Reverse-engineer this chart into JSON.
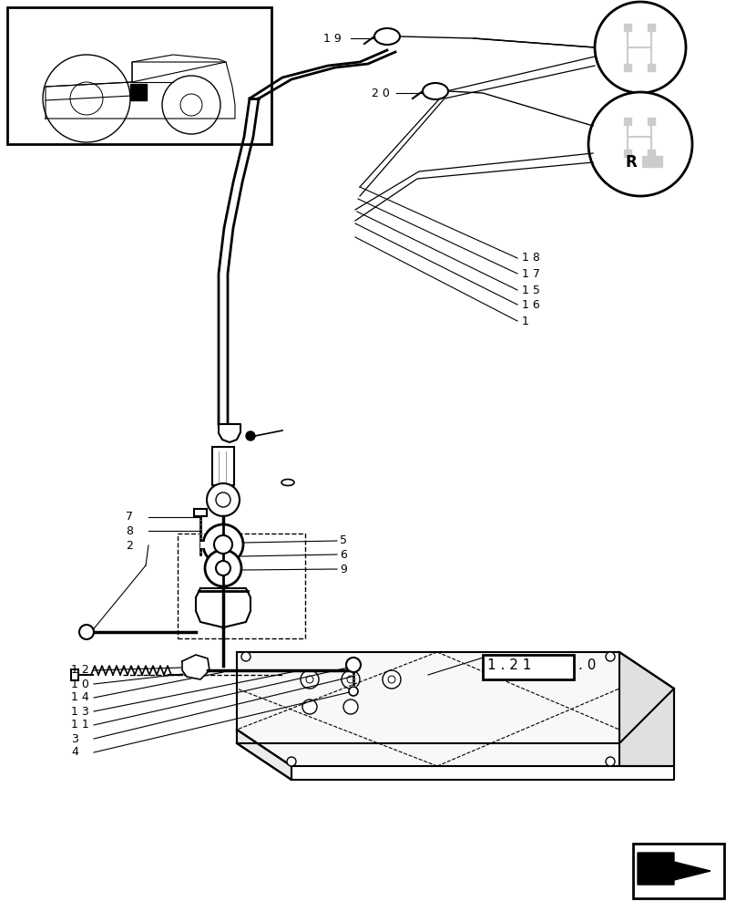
{
  "bg": "#ffffff",
  "lc": "#000000",
  "gray": "#999999",
  "lgray": "#cccccc",
  "dgray": "#555555",
  "labels": {
    "19": "1 9",
    "20": "2 0",
    "18": "1 8",
    "17": "1 7",
    "15": "1 5",
    "16": "1 6",
    "1": "1",
    "7": "7",
    "8": "8",
    "2": "2",
    "5": "5",
    "6": "6",
    "9": "9",
    "12": "1 2",
    "10": "1 0",
    "14": "1 4",
    "13": "1 3",
    "11": "1 1",
    "3": "3",
    "4": "4"
  },
  "ref_box": "1 . 2 1",
  "ref_dot": ". 0"
}
